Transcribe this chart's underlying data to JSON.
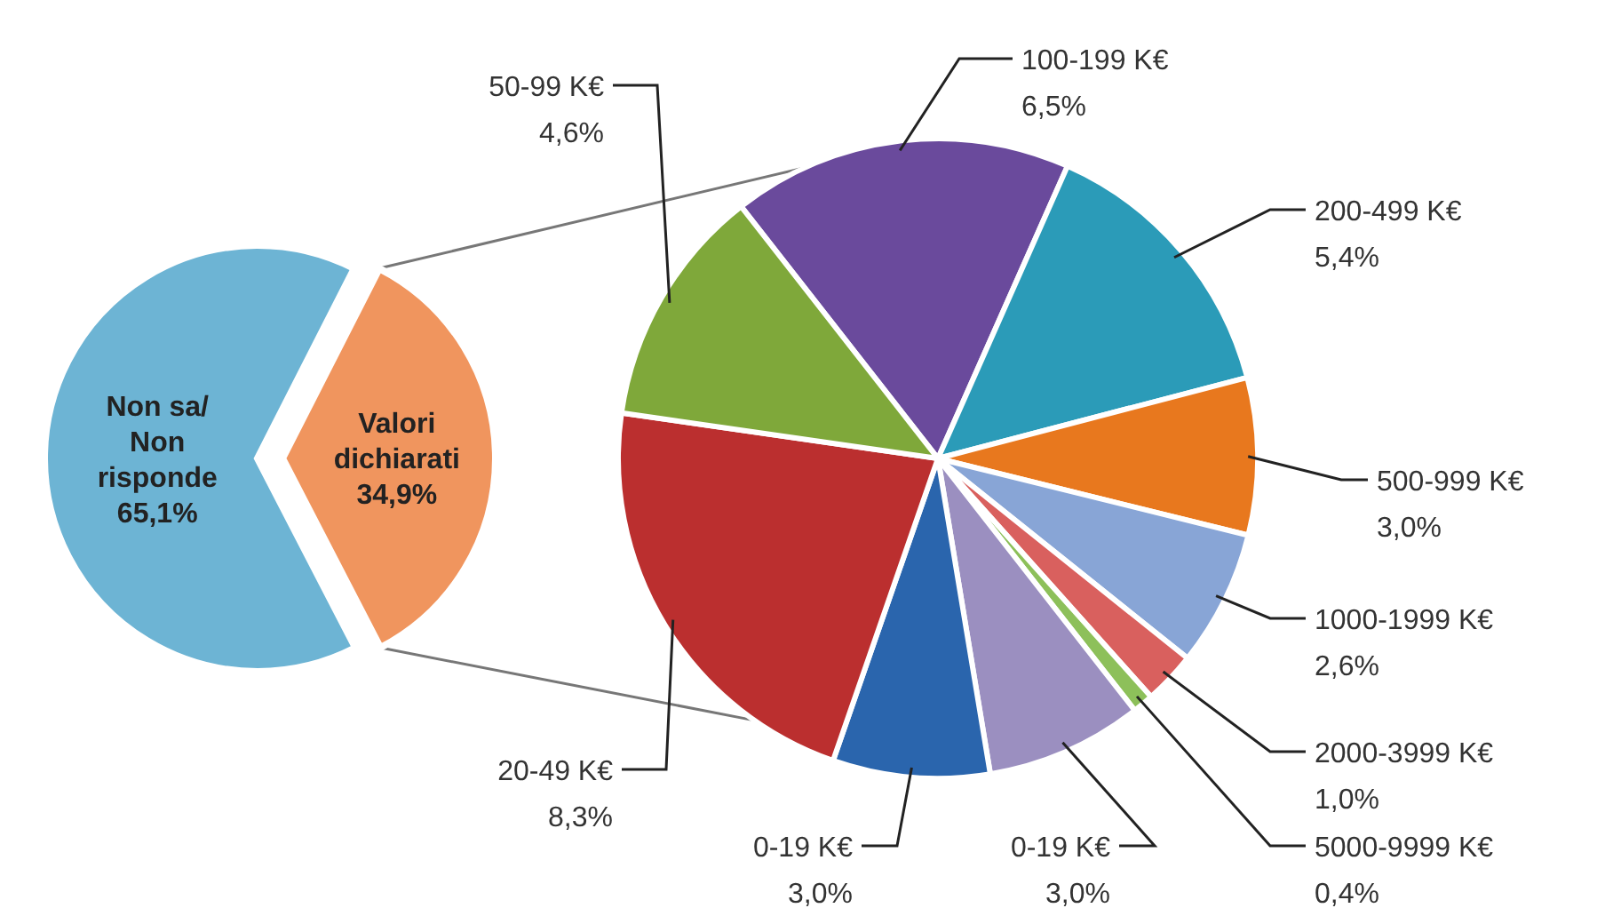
{
  "chart_data": [
    {
      "type": "pie",
      "categories": [
        "Valori\ndichiarati",
        "Non sa/\nNon\nrisponde"
      ],
      "values": [
        34.9,
        65.1
      ],
      "value_labels": [
        "34,9%",
        "65,1%"
      ],
      "colors": [
        "#f0955e",
        "#6db4d4"
      ]
    },
    {
      "type": "pie",
      "categories": [
        "100-199 K€",
        "200-499 K€",
        "500-999 K€",
        "1000-1999 K€",
        "2000-3999 K€",
        "5000-9999 K€",
        "0-19 K€",
        "0-19 K€",
        "20-49 K€",
        "50-99 K€"
      ],
      "values": [
        6.5,
        5.4,
        3.0,
        2.6,
        1.0,
        0.4,
        3.0,
        3.0,
        8.3,
        4.6
      ],
      "value_labels": [
        "6,5%",
        "5,4%",
        "3,0%",
        "2,6%",
        "1,0%",
        "0,4%",
        "3,0%",
        "3,0%",
        "8,3%",
        "4,6%"
      ],
      "colors": [
        "#6a4a9c",
        "#2b9bb8",
        "#e8781e",
        "#88a5d6",
        "#d9605e",
        "#8dc05a",
        "#9b8fc0",
        "#2a65ad",
        "#bb2f2f",
        "#7fa83a"
      ]
    }
  ]
}
